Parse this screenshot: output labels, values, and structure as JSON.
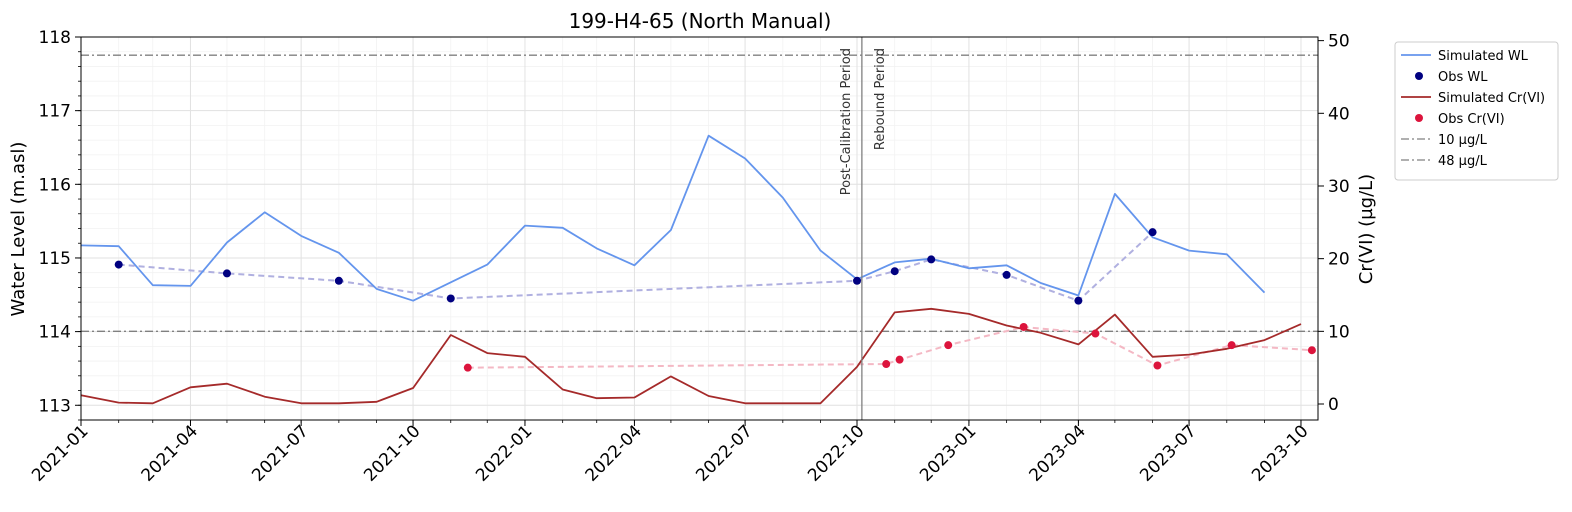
{
  "chart_data": {
    "type": "line",
    "title": "199-H4-65 (North Manual)",
    "ylabel_left": "Water Level (m.asl)",
    "ylabel_right": "Cr(VI) (µg/L)",
    "ylim_left": [
      112.8,
      118.0
    ],
    "ylim_right": [
      -2.2,
      50.5
    ],
    "xlim": [
      "2021-01-01",
      "2023-10-15"
    ],
    "x_ticks": [
      "2021-01",
      "2021-04",
      "2021-07",
      "2021-10",
      "2022-01",
      "2022-04",
      "2022-07",
      "2022-10",
      "2023-01",
      "2023-04",
      "2023-07",
      "2023-10"
    ],
    "y_ticks_left": [
      113,
      114,
      115,
      116,
      117,
      118
    ],
    "y_ticks_right": [
      0,
      10,
      20,
      30,
      40,
      50
    ],
    "grid": true,
    "legend_position": "outside-right-top",
    "vlines": [
      {
        "x": "2022-10-05",
        "label_left": "Post-Calibration Period",
        "label_right": "Rebound Period"
      }
    ],
    "hlines": [
      {
        "name": "10 µg/L",
        "y_right": 10,
        "color": "#808080"
      },
      {
        "name": "48 µg/L",
        "y_right": 48,
        "color": "#808080"
      }
    ],
    "series": [
      {
        "name": "Simulated WL",
        "kind": "line",
        "axis": "left",
        "color": "#6495ED",
        "x": [
          "2021-01-01",
          "2021-02-01",
          "2021-03-01",
          "2021-04-01",
          "2021-05-01",
          "2021-06-01",
          "2021-07-01",
          "2021-08-01",
          "2021-09-01",
          "2021-10-01",
          "2021-11-01",
          "2021-12-01",
          "2022-01-01",
          "2022-02-01",
          "2022-03-01",
          "2022-04-01",
          "2022-05-01",
          "2022-06-01",
          "2022-07-01",
          "2022-08-01",
          "2022-09-01",
          "2022-10-01",
          "2022-11-01",
          "2022-12-01",
          "2023-01-01",
          "2023-02-01",
          "2023-03-01",
          "2023-04-01",
          "2023-05-01",
          "2023-06-01",
          "2023-07-01",
          "2023-08-01",
          "2023-09-01"
        ],
        "y": [
          115.17,
          115.16,
          114.63,
          114.62,
          115.21,
          115.62,
          115.3,
          115.07,
          114.58,
          114.42,
          114.67,
          114.91,
          115.44,
          115.41,
          115.13,
          114.9,
          115.38,
          116.66,
          116.35,
          115.82,
          115.1,
          114.71,
          114.94,
          114.99,
          114.86,
          114.9,
          114.66,
          114.49,
          115.87,
          115.28,
          115.1,
          115.05,
          114.53
        ]
      },
      {
        "name": "Obs WL",
        "kind": "scatter",
        "axis": "left",
        "color": "#000080",
        "x": [
          "2021-02-01",
          "2021-05-01",
          "2021-08-01",
          "2021-11-01",
          "2022-10-01",
          "2022-11-01",
          "2022-12-01",
          "2023-02-01",
          "2023-04-01",
          "2023-06-01"
        ],
        "y": [
          114.91,
          114.79,
          114.69,
          114.45,
          114.69,
          114.82,
          114.98,
          114.77,
          114.42,
          115.35
        ]
      },
      {
        "name": "Simulated Cr(VI)",
        "kind": "line",
        "axis": "right",
        "color": "#A52A2A",
        "x": [
          "2021-01-01",
          "2021-02-01",
          "2021-03-01",
          "2021-04-01",
          "2021-05-01",
          "2021-06-01",
          "2021-07-01",
          "2021-08-01",
          "2021-09-01",
          "2021-10-01",
          "2021-11-01",
          "2021-12-01",
          "2022-01-01",
          "2022-02-01",
          "2022-03-01",
          "2022-04-01",
          "2022-05-01",
          "2022-06-01",
          "2022-07-01",
          "2022-08-01",
          "2022-09-01",
          "2022-10-01",
          "2022-11-01",
          "2022-12-01",
          "2023-01-01",
          "2023-02-01",
          "2023-03-01",
          "2023-04-01",
          "2023-05-01",
          "2023-06-01",
          "2023-07-01",
          "2023-08-01",
          "2023-09-01",
          "2023-10-01"
        ],
        "y": [
          1.2,
          0.2,
          0.1,
          2.3,
          2.8,
          1.0,
          0.1,
          0.1,
          0.3,
          2.2,
          9.5,
          7.0,
          6.5,
          2.0,
          0.8,
          0.9,
          3.8,
          1.1,
          0.1,
          0.1,
          0.1,
          5.1,
          12.6,
          13.1,
          12.4,
          10.8,
          9.8,
          8.2,
          12.3,
          6.5,
          6.8,
          7.6,
          8.8,
          11.0
        ]
      },
      {
        "name": "Obs Cr(VI)",
        "kind": "scatter",
        "axis": "right",
        "color": "#DC143C",
        "x": [
          "2021-11-15",
          "2022-10-25",
          "2022-11-05",
          "2022-12-15",
          "2023-02-15",
          "2023-04-15",
          "2023-06-05",
          "2023-08-05",
          "2023-10-10"
        ],
        "y": [
          5.0,
          5.5,
          6.1,
          8.1,
          10.6,
          9.7,
          5.3,
          8.1,
          7.4
        ]
      }
    ],
    "trend_lines": [
      {
        "axis": "left",
        "color": "#B0B0E0",
        "x": [
          "2021-02-01",
          "2021-05-01",
          "2021-08-01",
          "2021-11-01",
          "2022-10-01",
          "2022-11-01",
          "2022-12-01",
          "2023-02-01",
          "2023-04-01",
          "2023-06-01"
        ],
        "y": [
          114.91,
          114.79,
          114.69,
          114.45,
          114.69,
          114.82,
          114.98,
          114.77,
          114.42,
          115.35
        ]
      },
      {
        "axis": "right",
        "color": "#F4B8C4",
        "x": [
          "2021-11-15",
          "2022-10-25",
          "2022-11-05",
          "2022-12-15",
          "2023-02-15",
          "2023-04-15",
          "2023-06-05",
          "2023-08-05",
          "2023-10-10"
        ],
        "y": [
          5.0,
          5.5,
          6.1,
          8.1,
          10.6,
          9.7,
          5.3,
          8.1,
          7.4
        ]
      }
    ],
    "legend": [
      {
        "label": "Simulated WL",
        "kind": "line",
        "color": "#6495ED"
      },
      {
        "label": "Obs WL",
        "kind": "dot",
        "color": "#000080"
      },
      {
        "label": "Simulated Cr(VI)",
        "kind": "line",
        "color": "#A52A2A"
      },
      {
        "label": "Obs Cr(VI)",
        "kind": "dot",
        "color": "#DC143C"
      },
      {
        "label": "10 µg/L",
        "kind": "dashdot",
        "color": "#808080"
      },
      {
        "label": "48 µg/L",
        "kind": "dashdot",
        "color": "#808080"
      }
    ]
  }
}
